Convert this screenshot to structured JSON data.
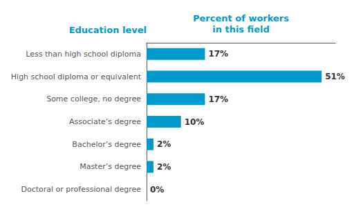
{
  "chart_data": {
    "type": "bar",
    "orientation": "horizontal",
    "xlabel": "Percent of workers\nin this field",
    "ylabel": "Education level",
    "categories": [
      "Doctoral or professional degree",
      "Master’s degree",
      "Bachelor’s degree",
      "Associate’s degree",
      "Some college, no degree",
      "High school diploma or equivalent",
      "Less than high school diploma"
    ],
    "values": [
      0,
      2,
      2,
      10,
      17,
      51,
      17
    ],
    "value_labels": [
      "0%",
      "2%",
      "2%",
      "10%",
      "17%",
      "51%",
      "17%"
    ],
    "data_labels": true,
    "color": "#0099cc",
    "xlim": [
      0,
      55
    ],
    "tick_labels": "y",
    "grid": false
  }
}
